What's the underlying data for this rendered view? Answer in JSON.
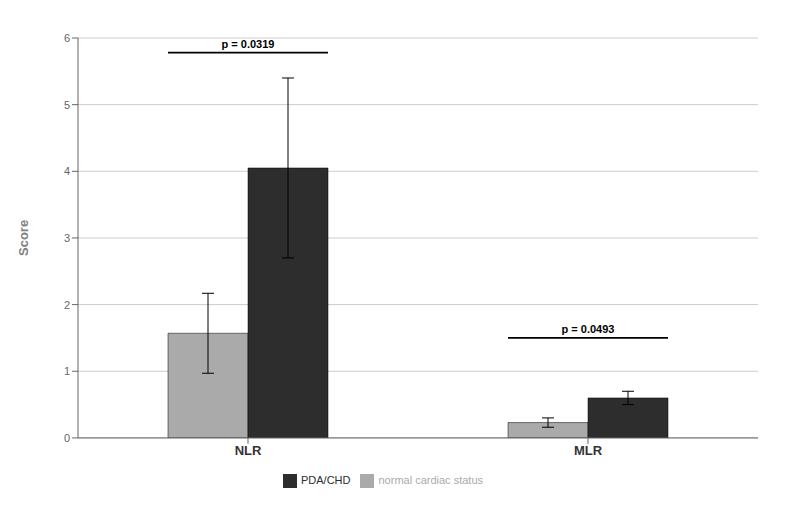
{
  "chart_data": {
    "type": "bar",
    "categories": [
      "NLR",
      "MLR"
    ],
    "series": [
      {
        "name": "normal cardiac status",
        "color": "#aaaaaa",
        "values": [
          1.57,
          0.23
        ],
        "errors": [
          0.6,
          0.07
        ]
      },
      {
        "name": "PDA/CHD",
        "color": "#2d2d2d",
        "values": [
          4.05,
          0.6
        ],
        "errors": [
          1.35,
          0.1
        ]
      }
    ],
    "y_label": "Score",
    "ylim": [
      0,
      6
    ],
    "yticks": [
      0,
      1,
      2,
      3,
      4,
      5,
      6
    ],
    "grid": true,
    "legend": "bottom",
    "annotations": [
      {
        "text": "p = 0.0319",
        "category": "NLR",
        "y": 5.78
      },
      {
        "text": "p = 0.0493",
        "category": "MLR",
        "y": 1.5
      }
    ]
  }
}
